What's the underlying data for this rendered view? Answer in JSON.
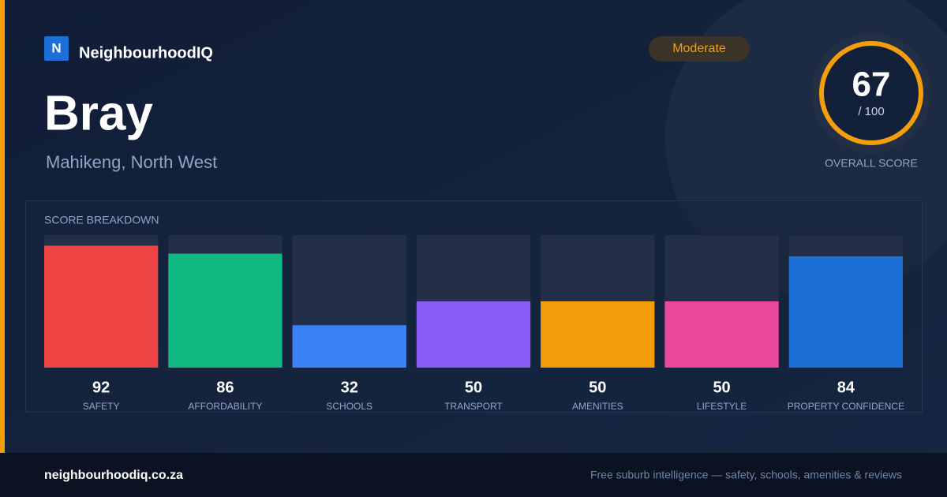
{
  "brand": {
    "logo": "N",
    "name": "NeighbourhoodIQ"
  },
  "badge": "Moderate",
  "title": "Bray",
  "subtitle": "Mahikeng, North West",
  "score": {
    "value": 67,
    "max_label": "/ 100",
    "label": "OVERALL SCORE"
  },
  "chart_data": {
    "type": "bar",
    "title": "SCORE BREAKDOWN",
    "categories": [
      "SAFETY",
      "AFFORDABILITY",
      "SCHOOLS",
      "TRANSPORT",
      "AMENITIES",
      "LIFESTYLE",
      "PROPERTY CONFIDENCE"
    ],
    "values": [
      92,
      86,
      32,
      50,
      50,
      50,
      84
    ],
    "colors": [
      "#ef4444",
      "#10b981",
      "#3b82f6",
      "#8b5cf6",
      "#f59e0b",
      "#ec4899",
      "#1d6fd8"
    ],
    "ylim": [
      0,
      100
    ]
  },
  "footer": {
    "url": "neighbourhoodiq.co.za",
    "tagline": "Free suburb intelligence — safety, schools, amenities & reviews"
  }
}
